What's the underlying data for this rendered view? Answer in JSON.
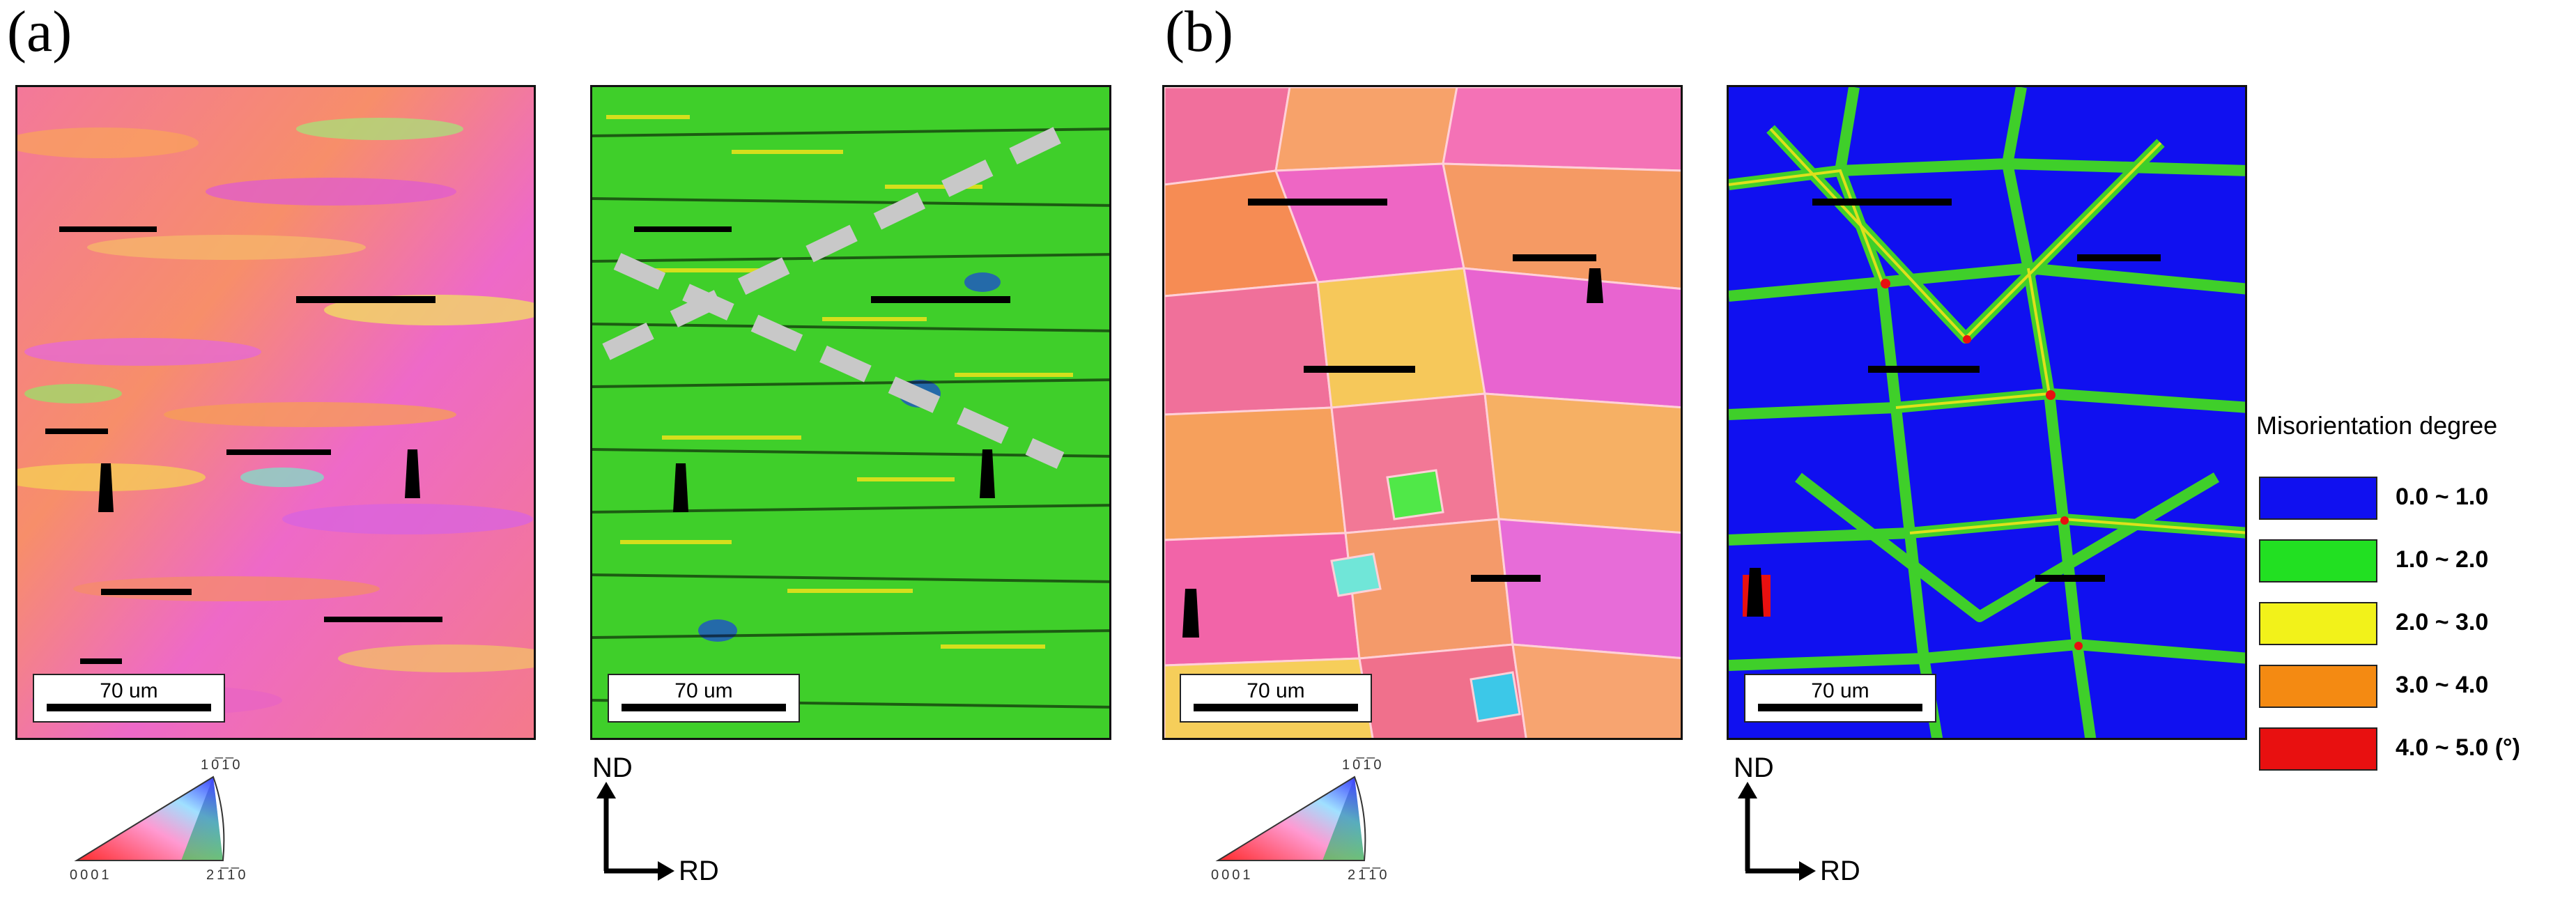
{
  "panels": [
    {
      "label": "(a)",
      "ipf_scale": "70 um",
      "kam_scale": "70 um"
    },
    {
      "label": "(b)",
      "ipf_scale": "70 um",
      "kam_scale": "70 um"
    }
  ],
  "ipf_key": {
    "corner_001": "0001",
    "corner_1010": "10̅1̅0",
    "corner_2110": "21̅1̅0"
  },
  "axes": {
    "vertical": "ND",
    "horizontal": "RD"
  },
  "legend": {
    "title": "Misorientation degree",
    "items": [
      {
        "label": "0.0 ~ 1.0",
        "color": "#1010f0"
      },
      {
        "label": "1.0 ~ 2.0",
        "color": "#22e022"
      },
      {
        "label": "2.0 ~ 3.0",
        "color": "#f2f21a"
      },
      {
        "label": "3.0 ~ 4.0",
        "color": "#f48a12"
      },
      {
        "label": "4.0 ~ 5.0 (°)",
        "color": "#e81010"
      }
    ]
  },
  "colors": {
    "ipf_pink": "#f2709a",
    "ipf_orange": "#f58a5a",
    "ipf_magenta": "#e85ad8",
    "kam_green": "#3fcf2a",
    "kam_blue": "#1010f0",
    "pore_black": "#000000",
    "dashed_line": "#c8c8c8"
  }
}
